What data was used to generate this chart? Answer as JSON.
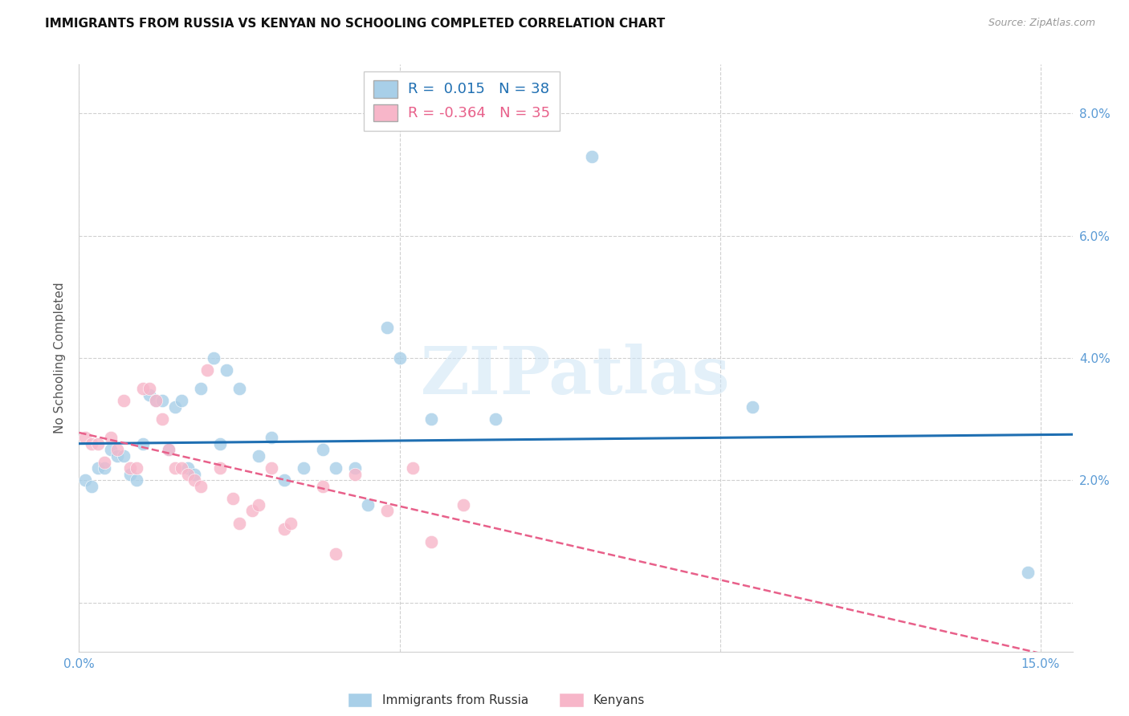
{
  "title": "IMMIGRANTS FROM RUSSIA VS KENYAN NO SCHOOLING COMPLETED CORRELATION CHART",
  "source": "Source: ZipAtlas.com",
  "ylabel": "No Schooling Completed",
  "xlim": [
    0.0,
    0.155
  ],
  "ylim": [
    -0.008,
    0.088
  ],
  "xtick_vals": [
    0.0,
    0.05,
    0.1,
    0.15
  ],
  "xtick_labels": [
    "0.0%",
    "",
    "",
    "15.0%"
  ],
  "ytick_vals": [
    0.0,
    0.02,
    0.04,
    0.06,
    0.08
  ],
  "ytick_labels": [
    "",
    "2.0%",
    "4.0%",
    "6.0%",
    "8.0%"
  ],
  "color_blue": "#a8cfe8",
  "color_pink": "#f7b6c9",
  "color_line_blue": "#1f6fb2",
  "color_line_pink": "#e8608a",
  "color_axis_text": "#5b9bd5",
  "color_grid": "#d0d0d0",
  "watermark": "ZIPatlas",
  "blue_points": [
    [
      0.001,
      0.02
    ],
    [
      0.002,
      0.019
    ],
    [
      0.003,
      0.022
    ],
    [
      0.004,
      0.022
    ],
    [
      0.005,
      0.025
    ],
    [
      0.006,
      0.024
    ],
    [
      0.007,
      0.024
    ],
    [
      0.008,
      0.021
    ],
    [
      0.009,
      0.02
    ],
    [
      0.01,
      0.026
    ],
    [
      0.011,
      0.034
    ],
    [
      0.012,
      0.033
    ],
    [
      0.013,
      0.033
    ],
    [
      0.014,
      0.025
    ],
    [
      0.015,
      0.032
    ],
    [
      0.016,
      0.033
    ],
    [
      0.017,
      0.022
    ],
    [
      0.018,
      0.021
    ],
    [
      0.019,
      0.035
    ],
    [
      0.021,
      0.04
    ],
    [
      0.022,
      0.026
    ],
    [
      0.023,
      0.038
    ],
    [
      0.025,
      0.035
    ],
    [
      0.028,
      0.024
    ],
    [
      0.03,
      0.027
    ],
    [
      0.032,
      0.02
    ],
    [
      0.035,
      0.022
    ],
    [
      0.038,
      0.025
    ],
    [
      0.04,
      0.022
    ],
    [
      0.043,
      0.022
    ],
    [
      0.045,
      0.016
    ],
    [
      0.048,
      0.045
    ],
    [
      0.05,
      0.04
    ],
    [
      0.055,
      0.03
    ],
    [
      0.065,
      0.03
    ],
    [
      0.08,
      0.073
    ],
    [
      0.105,
      0.032
    ],
    [
      0.148,
      0.005
    ]
  ],
  "pink_points": [
    [
      0.001,
      0.027
    ],
    [
      0.002,
      0.026
    ],
    [
      0.003,
      0.026
    ],
    [
      0.004,
      0.023
    ],
    [
      0.005,
      0.027
    ],
    [
      0.006,
      0.025
    ],
    [
      0.007,
      0.033
    ],
    [
      0.008,
      0.022
    ],
    [
      0.009,
      0.022
    ],
    [
      0.01,
      0.035
    ],
    [
      0.011,
      0.035
    ],
    [
      0.012,
      0.033
    ],
    [
      0.013,
      0.03
    ],
    [
      0.014,
      0.025
    ],
    [
      0.015,
      0.022
    ],
    [
      0.016,
      0.022
    ],
    [
      0.017,
      0.021
    ],
    [
      0.018,
      0.02
    ],
    [
      0.019,
      0.019
    ],
    [
      0.02,
      0.038
    ],
    [
      0.022,
      0.022
    ],
    [
      0.024,
      0.017
    ],
    [
      0.025,
      0.013
    ],
    [
      0.027,
      0.015
    ],
    [
      0.028,
      0.016
    ],
    [
      0.03,
      0.022
    ],
    [
      0.032,
      0.012
    ],
    [
      0.033,
      0.013
    ],
    [
      0.038,
      0.019
    ],
    [
      0.04,
      0.008
    ],
    [
      0.043,
      0.021
    ],
    [
      0.048,
      0.015
    ],
    [
      0.052,
      0.022
    ],
    [
      0.055,
      0.01
    ],
    [
      0.06,
      0.016
    ]
  ],
  "blue_trend_x": [
    0.0,
    0.155
  ],
  "blue_trend_y": [
    0.026,
    0.0275
  ],
  "pink_trend_x": [
    0.0,
    0.155
  ],
  "pink_trend_y": [
    0.0278,
    -0.0095
  ],
  "legend1_label": "R =  0.015   N = 38",
  "legend2_label": "R = -0.364   N = 35",
  "legend1_color": "#1f6fb2",
  "legend2_color": "#e8608a"
}
